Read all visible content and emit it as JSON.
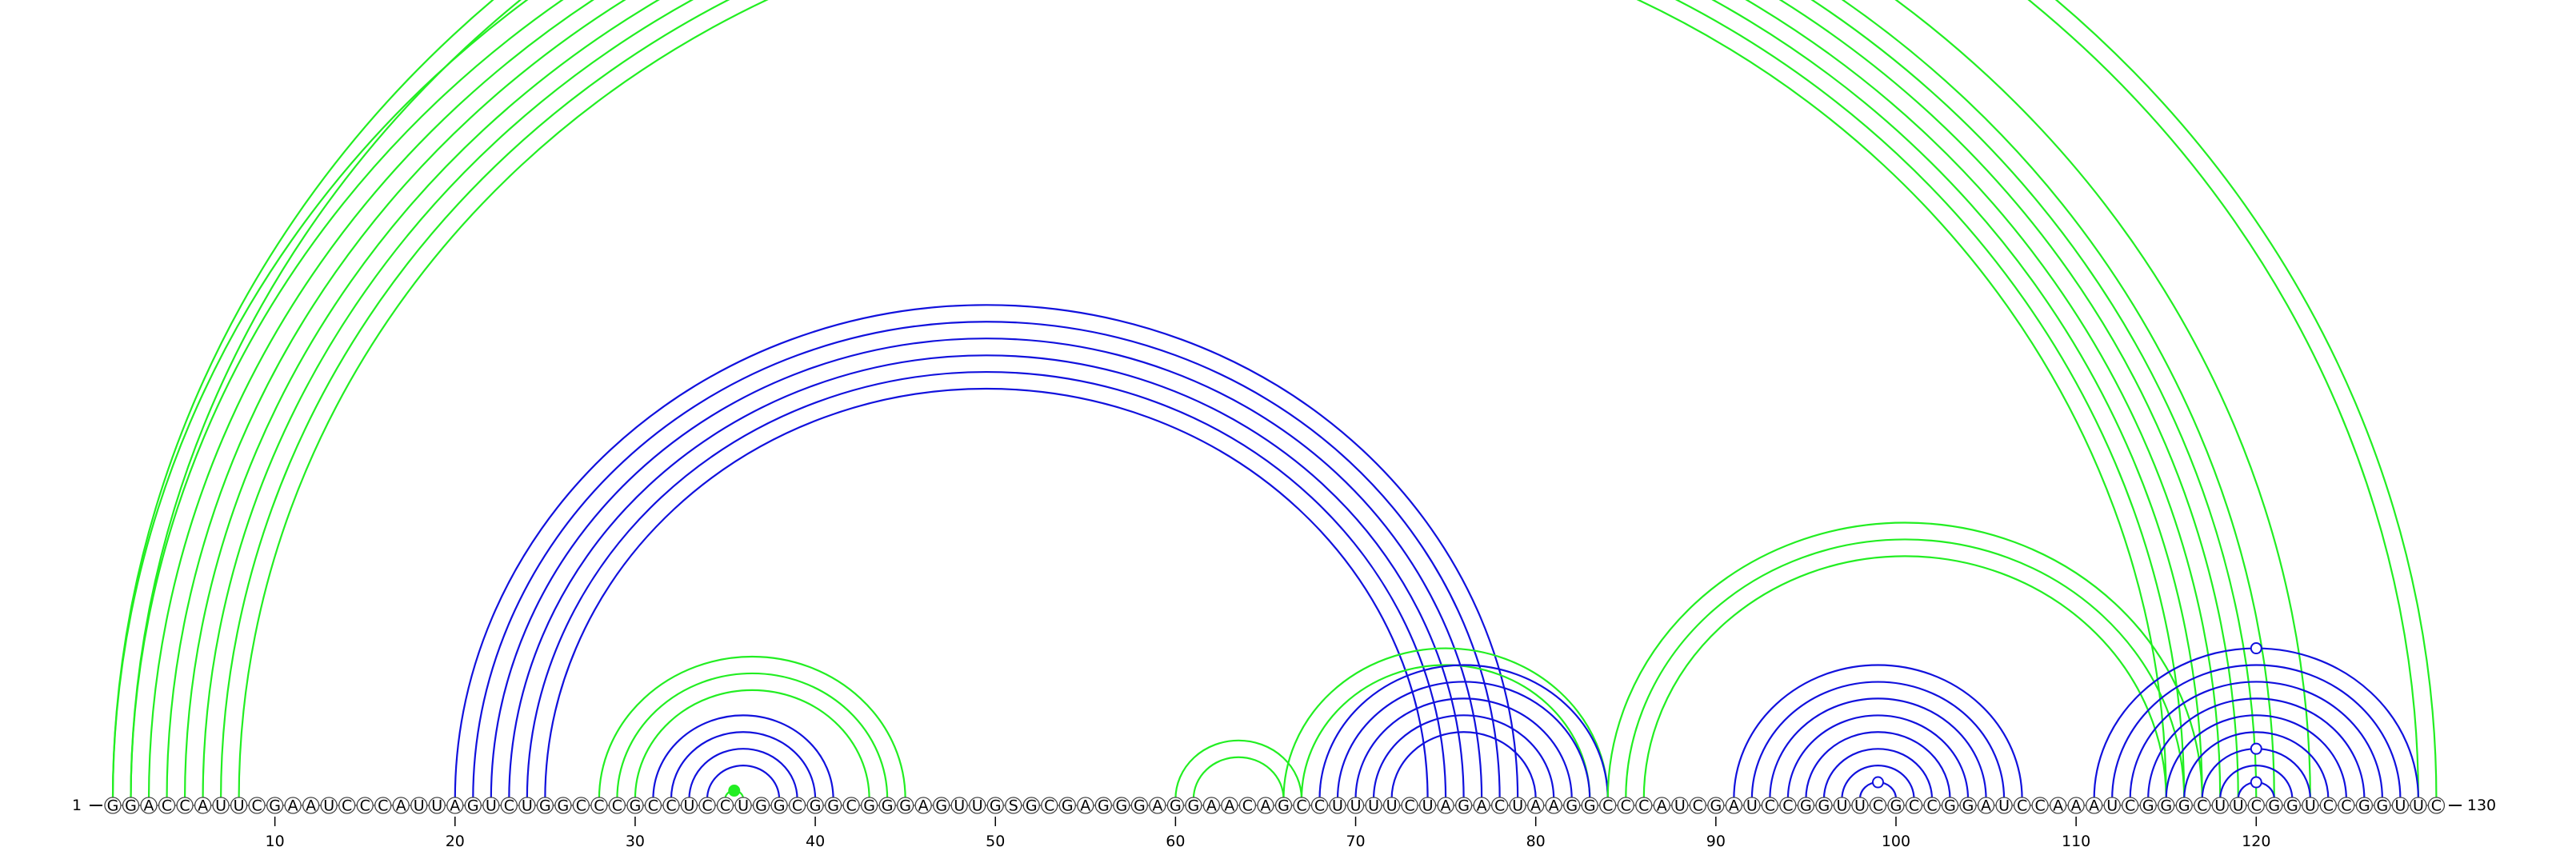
{
  "sequence": "GGACCAUUCGAAUCCCAUUAGUCUGGCCCGCCUCCUGGCGGCGGGAGUUGSGCGAGGGAGGAACAGCCUUUUCUAGACUAAGGCCCAUCGAUCCGGUUCGCCGGAUCCAAAUCGGGCUUCGGUCCGGUUC",
  "start_label": "1",
  "end_label": "130",
  "tick_labels": [
    "10",
    "20",
    "30",
    "40",
    "50",
    "60",
    "70",
    "80",
    "90",
    "100",
    "110",
    "120"
  ],
  "colors": {
    "green": "#22ee22",
    "blue": "#1111dd"
  },
  "helices": [
    {
      "color": "green",
      "pairs": [
        [
          1,
          123
        ],
        [
          2,
          121
        ],
        [
          3,
          120
        ],
        [
          4,
          119
        ],
        [
          5,
          118
        ],
        [
          6,
          117
        ],
        [
          7,
          116
        ],
        [
          8,
          115
        ]
      ]
    },
    {
      "color": "green",
      "pairs": [
        [
          1,
          130
        ],
        [
          2,
          129
        ]
      ]
    },
    {
      "color": "blue",
      "pairs": [
        [
          20,
          79
        ],
        [
          21,
          78
        ],
        [
          22,
          77
        ],
        [
          23,
          76
        ],
        [
          24,
          75
        ],
        [
          25,
          74
        ]
      ]
    },
    {
      "color": "green",
      "pairs": [
        [
          28,
          45
        ],
        [
          29,
          44
        ],
        [
          30,
          43
        ]
      ]
    },
    {
      "color": "blue",
      "pairs": [
        [
          31,
          41
        ],
        [
          32,
          40
        ],
        [
          33,
          39
        ],
        [
          34,
          38
        ]
      ]
    },
    {
      "color": "green",
      "pairs": [
        [
          35,
          36
        ]
      ]
    },
    {
      "color": "green",
      "pairs": [
        [
          60,
          67
        ],
        [
          61,
          66
        ]
      ]
    },
    {
      "color": "green",
      "pairs": [
        [
          66,
          84
        ],
        [
          67,
          83
        ]
      ]
    },
    {
      "color": "blue",
      "pairs": [
        [
          68,
          84
        ],
        [
          69,
          83
        ],
        [
          70,
          82
        ],
        [
          71,
          81
        ],
        [
          72,
          80
        ]
      ]
    },
    {
      "color": "green",
      "pairs": [
        [
          84,
          117
        ],
        [
          85,
          116
        ],
        [
          86,
          115
        ]
      ]
    },
    {
      "color": "blue",
      "pairs": [
        [
          91,
          107
        ],
        [
          92,
          106
        ],
        [
          93,
          105
        ],
        [
          94,
          104
        ],
        [
          95,
          103
        ],
        [
          96,
          102
        ],
        [
          97,
          101
        ],
        [
          98,
          100
        ]
      ]
    },
    {
      "color": "blue",
      "pairs": [
        [
          111,
          129
        ],
        [
          112,
          128
        ],
        [
          113,
          127
        ],
        [
          114,
          126
        ],
        [
          115,
          125
        ],
        [
          116,
          124
        ],
        [
          117,
          123
        ],
        [
          118,
          122
        ],
        [
          119,
          121
        ]
      ]
    }
  ],
  "markers": [
    {
      "pos": 35.5,
      "color": "green",
      "filled": true,
      "at_pair": [
        35,
        36
      ]
    },
    {
      "pos": 65,
      "color": "green",
      "filled": false,
      "at_pair": [
        2,
        129
      ]
    },
    {
      "pos": 99,
      "color": "blue",
      "filled": false,
      "at_pair": [
        98,
        100
      ]
    },
    {
      "pos": 120,
      "color": "blue",
      "filled": false,
      "at_pair": [
        119,
        121
      ]
    },
    {
      "pos": 120,
      "color": "blue",
      "filled": false,
      "at_pair": [
        117,
        123
      ]
    },
    {
      "pos": 120,
      "color": "blue",
      "filled": false,
      "at_pair": [
        111,
        129
      ]
    }
  ]
}
